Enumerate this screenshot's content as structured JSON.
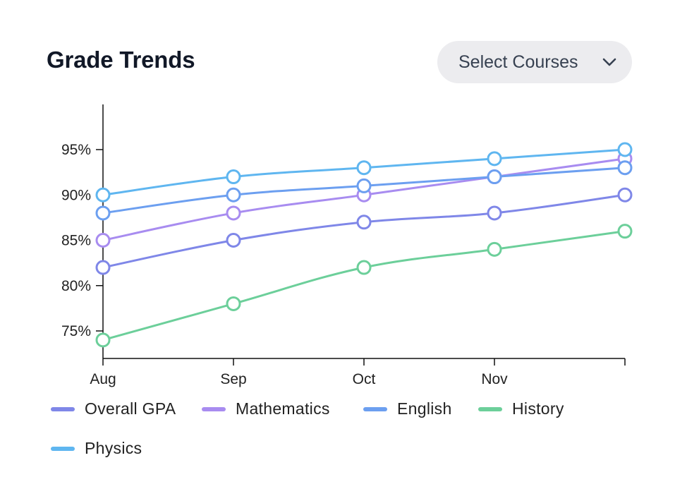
{
  "header": {
    "title": "Grade Trends",
    "select_label": "Select Courses",
    "select_icon": "chevron-down-icon"
  },
  "chart_data": {
    "type": "line",
    "title": "Grade Trends",
    "xlabel": "",
    "ylabel": "",
    "categories": [
      "Aug",
      "Sep",
      "Oct",
      "Nov",
      ""
    ],
    "y_ticks": [
      "75%",
      "80%",
      "85%",
      "90%",
      "95%"
    ],
    "y_tick_values": [
      75,
      80,
      85,
      90,
      95
    ],
    "ylim": [
      72,
      100
    ],
    "grid": false,
    "legend_position": "bottom",
    "series": [
      {
        "name": "Overall GPA",
        "color": "#7f87e8",
        "values": [
          82,
          85,
          87,
          88,
          90
        ]
      },
      {
        "name": "Mathematics",
        "color": "#a88cf0",
        "values": [
          85,
          88,
          90,
          92,
          94
        ]
      },
      {
        "name": "English",
        "color": "#6c9ff0",
        "values": [
          88,
          90,
          91,
          92,
          93
        ]
      },
      {
        "name": "History",
        "color": "#6ccf9a",
        "values": [
          74,
          78,
          82,
          84,
          86
        ]
      },
      {
        "name": "Physics",
        "color": "#5fb6f0",
        "values": [
          90,
          92,
          93,
          94,
          95
        ]
      }
    ]
  }
}
